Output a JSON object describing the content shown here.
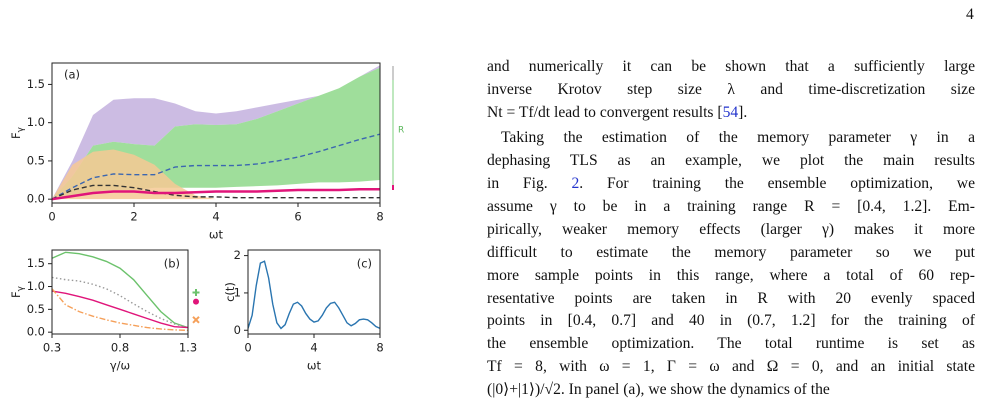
{
  "page_number": "4",
  "figure": {
    "panels": [
      {
        "label": "(a)",
        "xlabel": "ωt",
        "ylabel": {
          "text": "F",
          "sub": "γ"
        },
        "range_label": "R",
        "xlim": [
          0,
          8
        ],
        "ylim": [
          -0.05,
          1.78
        ],
        "xticks": [
          0,
          2,
          4,
          6,
          8
        ],
        "yticks": [
          {
            "value": 0,
            "label": "0.0"
          },
          {
            "value": 0.5,
            "label": "0.5"
          },
          {
            "value": 1,
            "label": "1.0"
          },
          {
            "value": 1.5,
            "label": "1.5"
          }
        ],
        "x": [
          0,
          0.5,
          1,
          1.5,
          2,
          2.5,
          3,
          3.5,
          4,
          4.5,
          5,
          5.5,
          6,
          6.5,
          7,
          7.5,
          8
        ],
        "bands": [
          {
            "color": "#c3b0de",
            "upper": [
              0,
              0.5,
              1.1,
              1.3,
              1.32,
              1.32,
              1.25,
              1.15,
              1.12,
              1.15,
              1.2,
              1.25,
              1.3,
              1.35,
              1.45,
              1.6,
              1.75
            ],
            "lower": [
              0,
              0.3,
              0.7,
              0.75,
              0.72,
              0.7,
              0.95,
              0.98,
              0.97,
              0.98,
              1.05,
              1.15,
              1.25,
              1.35,
              1.45,
              1.6,
              1.72
            ]
          },
          {
            "color": "#8ed88a",
            "upper": [
              0,
              0.3,
              0.7,
              0.75,
              0.72,
              0.7,
              0.95,
              0.98,
              0.97,
              0.98,
              1.05,
              1.15,
              1.25,
              1.35,
              1.45,
              1.6,
              1.72
            ],
            "lower": [
              0,
              0.05,
              0.1,
              0.12,
              0.12,
              0.15,
              0.15,
              0.15,
              0.15,
              0.16,
              0.17,
              0.18,
              0.2,
              0.22,
              0.22,
              0.23,
              0.25
            ]
          },
          {
            "color": "#f6c994",
            "upper": [
              0,
              0.45,
              0.62,
              0.65,
              0.58,
              0.45,
              0.2,
              0.05,
              0,
              0,
              0,
              0,
              0,
              0,
              0,
              0,
              0
            ],
            "lower": [
              0,
              0,
              0,
              0,
              0,
              0,
              0,
              0,
              0,
              0,
              0,
              0,
              0,
              0,
              0,
              0,
              0
            ]
          }
        ],
        "series": [
          {
            "color": "#3b66b0",
            "dash": "dashed",
            "values": [
              0,
              0.15,
              0.28,
              0.33,
              0.32,
              0.32,
              0.42,
              0.44,
              0.44,
              0.44,
              0.46,
              0.5,
              0.55,
              0.62,
              0.7,
              0.78,
              0.85
            ]
          },
          {
            "color": "#333333",
            "dash": "dashed",
            "values": [
              0,
              0.12,
              0.18,
              0.18,
              0.15,
              0.1,
              0.05,
              0.03,
              0.03,
              0.02,
              0.02,
              0.02,
              0.02,
              0.02,
              0.02,
              0.02,
              0.02
            ]
          },
          {
            "color": "#e0157a",
            "dash": "solid",
            "values": [
              0,
              0.04,
              0.08,
              0.1,
              0.1,
              0.08,
              0.08,
              0.09,
              0.1,
              0.1,
              0.1,
              0.11,
              0.12,
              0.12,
              0.12,
              0.13,
              0.13
            ]
          }
        ]
      },
      {
        "label": "(b)",
        "xlabel": "γ/ω",
        "ylabel": {
          "text": "F",
          "sub": "γ"
        },
        "xlim": [
          0.3,
          1.3
        ],
        "ylim": [
          -0.04,
          1.8
        ],
        "xticks": [
          0.3,
          0.8,
          1.3
        ],
        "yticks": [
          {
            "value": 0,
            "label": "0.0"
          },
          {
            "value": 0.5,
            "label": "0.5"
          },
          {
            "value": 1,
            "label": "1.0"
          },
          {
            "value": 1.5,
            "label": "1.5"
          }
        ],
        "x": [
          0.3,
          0.4,
          0.5,
          0.6,
          0.7,
          0.8,
          0.9,
          1.0,
          1.1,
          1.2,
          1.3
        ],
        "series": [
          {
            "color": "#6cc26c",
            "dash": "solid",
            "values": [
              1.62,
              1.75,
              1.72,
              1.65,
              1.55,
              1.4,
              1.15,
              0.8,
              0.45,
              0.2,
              0.1
            ]
          },
          {
            "color": "#999999",
            "dash": "dotted",
            "values": [
              1.2,
              1.15,
              1.12,
              1.05,
              0.95,
              0.8,
              0.62,
              0.45,
              0.3,
              0.18,
              0.1
            ]
          },
          {
            "color": "#e0157a",
            "dash": "solid",
            "values": [
              0.9,
              0.85,
              0.78,
              0.7,
              0.6,
              0.5,
              0.4,
              0.3,
              0.2,
              0.12,
              0.1
            ]
          },
          {
            "color": "#f5a05a",
            "dash": "dashdot",
            "values": [
              0.95,
              0.6,
              0.45,
              0.35,
              0.27,
              0.2,
              0.15,
              0.1,
              0.07,
              0.05,
              0.04
            ]
          }
        ],
        "markers": [
          {
            "color": "#6cc26c",
            "symbol": "plus",
            "value": 0.87
          },
          {
            "color": "#e0157a",
            "symbol": "dot",
            "value": 0.67
          },
          {
            "color": "#f5a05a",
            "symbol": "cross",
            "value": 0.27
          }
        ]
      },
      {
        "label": "(c)",
        "xlabel": "ωt",
        "ylabel": {
          "text": "c(t)"
        },
        "xlim": [
          0,
          8
        ],
        "ylim": [
          -0.1,
          2.15
        ],
        "xticks": [
          0,
          4,
          8
        ],
        "yticks": [
          0,
          1,
          2
        ],
        "x": [
          0,
          0.25,
          0.5,
          0.75,
          1,
          1.25,
          1.5,
          1.75,
          2,
          2.25,
          2.5,
          2.75,
          3,
          3.25,
          3.5,
          3.75,
          4,
          4.25,
          4.5,
          4.75,
          5,
          5.25,
          5.5,
          5.75,
          6,
          6.25,
          6.5,
          6.75,
          7,
          7.25,
          7.5,
          7.75,
          8
        ],
        "series": [
          {
            "color": "#2a75b0",
            "dash": "solid",
            "values": [
              0.05,
              0.4,
              1.2,
              1.8,
              1.85,
              1.4,
              0.7,
              0.2,
              0.05,
              0.15,
              0.45,
              0.7,
              0.75,
              0.65,
              0.45,
              0.3,
              0.22,
              0.25,
              0.4,
              0.6,
              0.72,
              0.75,
              0.6,
              0.4,
              0.2,
              0.12,
              0.18,
              0.28,
              0.3,
              0.28,
              0.2,
              0.1,
              0.05
            ]
          }
        ]
      }
    ]
  },
  "text": {
    "paragraphs": [
      [
        {
          "text": "and numerically it can be shown that a sufficiently large"
        },
        {
          "text": "inverse Krotov step size λ and time-discretization size"
        },
        {
          "text": "Nt = Tf/dt lead to convergent results [",
          "ref": "54",
          "tail": "]."
        }
      ],
      [
        {
          "text": "Taking the estimation of the memory parameter γ in a"
        },
        {
          "text": "dephasing TLS as an example, we plot the main results"
        },
        {
          "text": "in Fig. ",
          "ref": "2",
          "tail": ". For training the ensemble optimization, we"
        },
        {
          "text": "assume γ to be in a training range R = [0.4, 1.2]. Em-"
        },
        {
          "text": "pirically, weaker memory effects (larger γ) makes it more"
        },
        {
          "text": "difficult to estimate the memory parameter so we put"
        },
        {
          "text": "more sample points in this range, where a total of 60 rep-"
        },
        {
          "text": "resentative points are taken in R with 20 evenly spaced"
        },
        {
          "text": "points in [0.4, 0.7] and 40 in (0.7, 1.2] for the training of"
        },
        {
          "text": "the ensemble optimization. The total runtime is set as"
        },
        {
          "text": "Tf = 8, with ω = 1, Γ = ω and Ω = 0, and an initial state"
        },
        {
          "text": "(|0⟩+|1⟩)/√2. In panel (a), we show the dynamics of the"
        }
      ]
    ]
  }
}
